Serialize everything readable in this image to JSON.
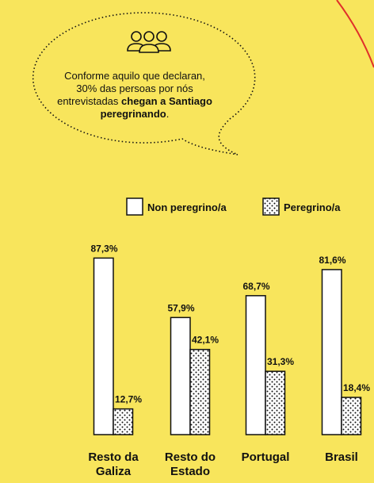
{
  "chart_data": {
    "type": "bar",
    "annotation": {
      "text": "Conforme aquilo que declaran, 30% das persoas por nós entrevistadas ",
      "bold": "chegan a Santiago peregrinando",
      "end": "."
    },
    "categories": [
      "Resto da Galiza",
      "Resto do Estado",
      "Portugal",
      "Brasil"
    ],
    "series": [
      {
        "name": "Non peregrino/a",
        "color": "#ffffff",
        "values": [
          87.3,
          57.9,
          68.7,
          81.6
        ],
        "value_labels": [
          "87,3%",
          "57,9%",
          "68,7%",
          "81,6%"
        ]
      },
      {
        "name": "Peregrino/a",
        "color": "dots",
        "values": [
          12.7,
          42.1,
          31.3,
          18.4
        ],
        "value_labels": [
          "12,7%",
          "42,1%",
          "31,3%",
          "18,4%"
        ]
      }
    ]
  }
}
